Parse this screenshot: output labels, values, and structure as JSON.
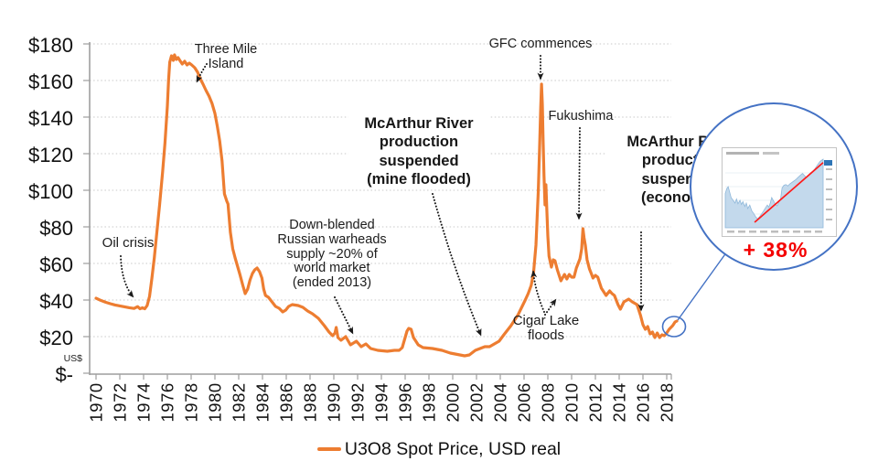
{
  "chart_data": {
    "type": "line",
    "title": "",
    "xlabel": "",
    "ylabel": "US$",
    "xlim": [
      1970,
      2019.3
    ],
    "ylim": [
      0,
      180
    ],
    "grid": "horizontal-dotted",
    "x_ticks": [
      "1970",
      "1972",
      "1974",
      "1976",
      "1978",
      "1980",
      "1982",
      "1984",
      "1986",
      "1988",
      "1990",
      "1992",
      "1994",
      "1996",
      "1998",
      "2000",
      "2002",
      "2004",
      "2006",
      "2008",
      "2010",
      "2012",
      "2014",
      "2016",
      "2018"
    ],
    "y_axis": {
      "labels": [
        "$180",
        "$160",
        "$140",
        "$120",
        "$100",
        "$80",
        "$60",
        "$40",
        "$20",
        "$-"
      ],
      "values": [
        180,
        160,
        140,
        120,
        100,
        80,
        60,
        40,
        20,
        0
      ],
      "unit_label": "US$"
    },
    "legend": {
      "position": "bottom-center",
      "label": "U3O8 Spot Price, USD real",
      "swatch_color": "#ED7D31"
    },
    "series": [
      {
        "name": "U3O8 Spot Price, USD real",
        "color": "#ED7D31",
        "points": [
          [
            1970.0,
            41
          ],
          [
            1970.4,
            39.8
          ],
          [
            1970.8,
            38.8
          ],
          [
            1971.2,
            38
          ],
          [
            1971.6,
            37.3
          ],
          [
            1972.0,
            36.8
          ],
          [
            1972.4,
            36.3
          ],
          [
            1972.8,
            35.8
          ],
          [
            1973.2,
            35.4
          ],
          [
            1973.5,
            36.4
          ],
          [
            1973.7,
            35.2
          ],
          [
            1973.9,
            35.8
          ],
          [
            1974.1,
            35.2
          ],
          [
            1974.3,
            37
          ],
          [
            1974.5,
            42
          ],
          [
            1974.7,
            52
          ],
          [
            1974.9,
            63
          ],
          [
            1975.1,
            76
          ],
          [
            1975.35,
            92
          ],
          [
            1975.6,
            110
          ],
          [
            1975.8,
            126
          ],
          [
            1976.0,
            146
          ],
          [
            1976.1,
            160
          ],
          [
            1976.2,
            170
          ],
          [
            1976.35,
            173.5
          ],
          [
            1976.5,
            171
          ],
          [
            1976.6,
            174
          ],
          [
            1976.75,
            171.5
          ],
          [
            1976.9,
            172.5
          ],
          [
            1977.05,
            171
          ],
          [
            1977.25,
            169
          ],
          [
            1977.45,
            170.5
          ],
          [
            1977.65,
            168.5
          ],
          [
            1977.85,
            169.5
          ],
          [
            1978.05,
            168.5
          ],
          [
            1978.3,
            167
          ],
          [
            1978.55,
            164.5
          ],
          [
            1978.8,
            160.5
          ],
          [
            1979.0,
            158
          ],
          [
            1979.25,
            154.5
          ],
          [
            1979.5,
            151.5
          ],
          [
            1979.75,
            147.5
          ],
          [
            1980.0,
            142
          ],
          [
            1980.2,
            135
          ],
          [
            1980.4,
            127
          ],
          [
            1980.6,
            116
          ],
          [
            1980.8,
            98
          ],
          [
            1981.0,
            94
          ],
          [
            1981.1,
            92.5
          ],
          [
            1981.3,
            77
          ],
          [
            1981.5,
            68
          ],
          [
            1981.7,
            63
          ],
          [
            1981.9,
            58.5
          ],
          [
            1982.1,
            54
          ],
          [
            1982.35,
            48
          ],
          [
            1982.55,
            43.5
          ],
          [
            1982.75,
            46
          ],
          [
            1982.95,
            51
          ],
          [
            1983.15,
            54.5
          ],
          [
            1983.35,
            56.5
          ],
          [
            1983.55,
            57.5
          ],
          [
            1983.75,
            55.5
          ],
          [
            1983.95,
            52
          ],
          [
            1984.1,
            46
          ],
          [
            1984.25,
            42.5
          ],
          [
            1984.5,
            41.5
          ],
          [
            1984.8,
            39
          ],
          [
            1985.1,
            36.5
          ],
          [
            1985.4,
            35.5
          ],
          [
            1985.7,
            33.5
          ],
          [
            1985.95,
            34.5
          ],
          [
            1986.2,
            36.5
          ],
          [
            1986.5,
            37.5
          ],
          [
            1987.0,
            37
          ],
          [
            1987.4,
            36
          ],
          [
            1987.8,
            34
          ],
          [
            1988.2,
            32.5
          ],
          [
            1988.7,
            30
          ],
          [
            1989.2,
            26
          ],
          [
            1989.6,
            22.5
          ],
          [
            1989.9,
            20.5
          ],
          [
            1990.1,
            22
          ],
          [
            1990.2,
            25
          ],
          [
            1990.35,
            19.5
          ],
          [
            1990.6,
            18
          ],
          [
            1991.0,
            20
          ],
          [
            1991.4,
            15.5
          ],
          [
            1991.9,
            17.5
          ],
          [
            1992.3,
            14.5
          ],
          [
            1992.7,
            16
          ],
          [
            1993.1,
            13.5
          ],
          [
            1993.7,
            12.5
          ],
          [
            1994.5,
            12
          ],
          [
            1995.1,
            12.5
          ],
          [
            1995.5,
            12.5
          ],
          [
            1995.75,
            14
          ],
          [
            1995.95,
            18.5
          ],
          [
            1996.15,
            23
          ],
          [
            1996.3,
            24.5
          ],
          [
            1996.5,
            24
          ],
          [
            1996.7,
            19.5
          ],
          [
            1997.1,
            15.5
          ],
          [
            1997.5,
            14
          ],
          [
            1998.3,
            13.5
          ],
          [
            1999.1,
            12.5
          ],
          [
            1999.8,
            11
          ],
          [
            2000.6,
            10
          ],
          [
            2001.0,
            9.5
          ],
          [
            2001.4,
            10
          ],
          [
            2001.9,
            12.5
          ],
          [
            2002.3,
            13.5
          ],
          [
            2002.7,
            14.5
          ],
          [
            2003.1,
            14.5
          ],
          [
            2003.5,
            16
          ],
          [
            2003.9,
            17.5
          ],
          [
            2004.3,
            21
          ],
          [
            2004.6,
            23.5
          ],
          [
            2004.9,
            26
          ],
          [
            2005.2,
            29
          ],
          [
            2005.5,
            32
          ],
          [
            2005.8,
            36
          ],
          [
            2006.1,
            40
          ],
          [
            2006.35,
            43.5
          ],
          [
            2006.6,
            48
          ],
          [
            2006.8,
            55
          ],
          [
            2007.0,
            70
          ],
          [
            2007.1,
            85
          ],
          [
            2007.2,
            100
          ],
          [
            2007.3,
            122
          ],
          [
            2007.4,
            145
          ],
          [
            2007.47,
            158
          ],
          [
            2007.54,
            147
          ],
          [
            2007.6,
            128
          ],
          [
            2007.68,
            108
          ],
          [
            2007.76,
            92
          ],
          [
            2007.84,
            103
          ],
          [
            2007.92,
            88
          ],
          [
            2008.0,
            75
          ],
          [
            2008.1,
            64
          ],
          [
            2008.3,
            58
          ],
          [
            2008.45,
            62
          ],
          [
            2008.6,
            61.5
          ],
          [
            2008.8,
            56.5
          ],
          [
            2009.1,
            50.5
          ],
          [
            2009.4,
            54
          ],
          [
            2009.6,
            51.5
          ],
          [
            2009.8,
            54
          ],
          [
            2010.0,
            52.5
          ],
          [
            2010.2,
            52.5
          ],
          [
            2010.4,
            57.5
          ],
          [
            2010.7,
            62.5
          ],
          [
            2010.85,
            68
          ],
          [
            2010.95,
            79
          ],
          [
            2011.05,
            74
          ],
          [
            2011.15,
            70
          ],
          [
            2011.3,
            62
          ],
          [
            2011.5,
            57
          ],
          [
            2011.65,
            54.5
          ],
          [
            2011.8,
            52
          ],
          [
            2012.0,
            53.5
          ],
          [
            2012.2,
            52.5
          ],
          [
            2012.5,
            46.5
          ],
          [
            2012.9,
            42.5
          ],
          [
            2013.2,
            45
          ],
          [
            2013.4,
            43.5
          ],
          [
            2013.6,
            42.5
          ],
          [
            2013.9,
            37.5
          ],
          [
            2014.1,
            35
          ],
          [
            2014.4,
            39
          ],
          [
            2014.8,
            40.5
          ],
          [
            2015.1,
            39
          ],
          [
            2015.5,
            37.5
          ],
          [
            2015.8,
            31.5
          ],
          [
            2016.0,
            26.5
          ],
          [
            2016.2,
            24
          ],
          [
            2016.4,
            25.5
          ],
          [
            2016.6,
            21.5
          ],
          [
            2016.8,
            22.5
          ],
          [
            2017.0,
            19.5
          ],
          [
            2017.2,
            22
          ],
          [
            2017.4,
            19.5
          ],
          [
            2017.6,
            21
          ],
          [
            2017.8,
            20.5
          ],
          [
            2018.0,
            22
          ],
          [
            2018.2,
            24
          ],
          [
            2018.5,
            26
          ],
          [
            2018.7,
            28
          ],
          [
            2018.85,
            28.5
          ]
        ]
      }
    ]
  },
  "annotations": [
    {
      "id": "oil-crisis",
      "text": "Oil crisis",
      "bold": false
    },
    {
      "id": "three-mile-island",
      "text": "Three Mile\nIsland",
      "bold": false
    },
    {
      "id": "russian-warheads",
      "text": "Down-blended\nRussian warheads\nsupply ~20% of\nworld market\n(ended 2013)",
      "bold": false
    },
    {
      "id": "mcarthur-flooded",
      "text": "McArthur River\nproduction\nsuspended\n(mine flooded)",
      "bold": true
    },
    {
      "id": "gfc-commences",
      "text": "GFC commences",
      "bold": false
    },
    {
      "id": "fukushima",
      "text": "Fukushima",
      "bold": false
    },
    {
      "id": "cigar-lake",
      "text": "Cigar Lake\nfloods",
      "bold": false
    },
    {
      "id": "mcarthur-economic",
      "text": "McArthur River\nproduction\nsuspended\n(economic)",
      "bold": true
    }
  ],
  "inset": {
    "gain_label": "+ 38%",
    "gain_color": "#F40000",
    "circle_color": "#4472C4",
    "mini_chart": {
      "type": "area",
      "fill": "#C3D9EC",
      "stroke": "#8FB8DA",
      "trend_color": "#FF1A1A",
      "marker_color": "#2E75B6",
      "points": [
        [
          0,
          0.5
        ],
        [
          0.015,
          0.57
        ],
        [
          0.03,
          0.6
        ],
        [
          0.045,
          0.52
        ],
        [
          0.06,
          0.44
        ],
        [
          0.08,
          0.4
        ],
        [
          0.1,
          0.36
        ],
        [
          0.115,
          0.42
        ],
        [
          0.13,
          0.35
        ],
        [
          0.15,
          0.4
        ],
        [
          0.165,
          0.34
        ],
        [
          0.18,
          0.38
        ],
        [
          0.2,
          0.31
        ],
        [
          0.215,
          0.36
        ],
        [
          0.23,
          0.28
        ],
        [
          0.25,
          0.33
        ],
        [
          0.27,
          0.25
        ],
        [
          0.29,
          0.21
        ],
        [
          0.31,
          0.16
        ],
        [
          0.33,
          0.13
        ],
        [
          0.35,
          0.16
        ],
        [
          0.37,
          0.2
        ],
        [
          0.39,
          0.24
        ],
        [
          0.41,
          0.29
        ],
        [
          0.43,
          0.33
        ],
        [
          0.445,
          0.3
        ],
        [
          0.46,
          0.36
        ],
        [
          0.475,
          0.44
        ],
        [
          0.49,
          0.4
        ],
        [
          0.51,
          0.35
        ],
        [
          0.53,
          0.32
        ],
        [
          0.55,
          0.38
        ],
        [
          0.565,
          0.42
        ],
        [
          0.58,
          0.58
        ],
        [
          0.6,
          0.62
        ],
        [
          0.62,
          0.63
        ],
        [
          0.64,
          0.61
        ],
        [
          0.66,
          0.64
        ],
        [
          0.68,
          0.66
        ],
        [
          0.7,
          0.68
        ],
        [
          0.72,
          0.7
        ],
        [
          0.74,
          0.73
        ],
        [
          0.755,
          0.75
        ],
        [
          0.77,
          0.77
        ],
        [
          0.79,
          0.79
        ],
        [
          0.81,
          0.76
        ],
        [
          0.83,
          0.73
        ],
        [
          0.85,
          0.77
        ],
        [
          0.87,
          0.8
        ],
        [
          0.89,
          0.82
        ],
        [
          0.91,
          0.85
        ],
        [
          0.93,
          0.89
        ],
        [
          0.95,
          0.93
        ],
        [
          0.97,
          0.97
        ],
        [
          1.0,
          1.0
        ]
      ],
      "trend_line": [
        [
          0.3,
          0.08
        ],
        [
          1.0,
          0.95
        ]
      ]
    }
  },
  "colors": {
    "line": "#ED7D31",
    "grid": "#C9C9C9",
    "axis": "#9E9E9E",
    "annotation_arrow": "#1a1a1a",
    "callout_blue": "#4472C4"
  }
}
